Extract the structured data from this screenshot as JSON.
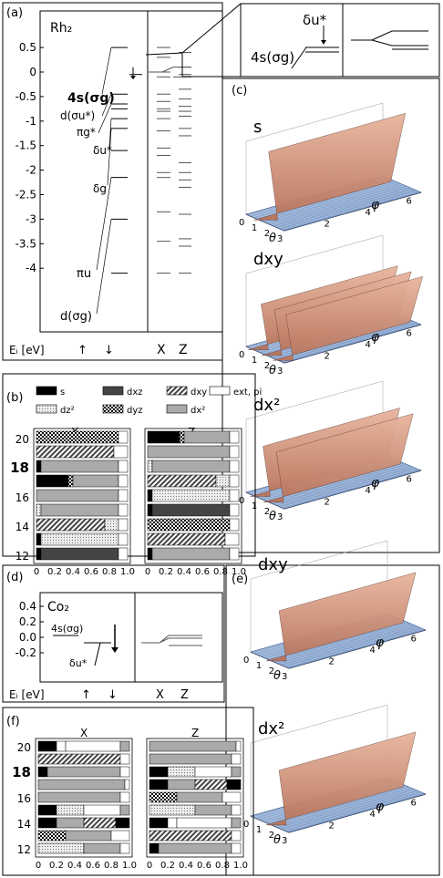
{
  "panels": {
    "a": {
      "label": "(a)",
      "molecule": "Rh₂",
      "y_ticks": [
        "0.5",
        "0",
        "-0.5",
        "-1",
        "-1.5",
        "-2",
        "-2.5",
        "-3",
        "-3.5",
        "-4"
      ],
      "y_values": [
        0.5,
        0,
        -0.5,
        -1,
        -1.5,
        -2,
        -2.5,
        -3,
        -3.5,
        -4
      ],
      "axis_label": "Eᵢ [eV]",
      "up": "↑",
      "down": "↓",
      "col_x": "X",
      "col_z": "Z",
      "levels": [
        {
          "name": "4s(σg)",
          "energy": -0.45
        },
        {
          "name": "d(σu*)",
          "energy": -0.72
        },
        {
          "name": "πg*",
          "energy": -0.97
        },
        {
          "name": "δu*",
          "energy": -1.12
        },
        {
          "name": "δg",
          "energy": -1.75
        },
        {
          "name": "πu",
          "energy": -3.5
        },
        {
          "name": "d(σg)",
          "energy": -4.1
        }
      ]
    },
    "inset": {
      "delta": "δu*",
      "sigma": "4s(σg)"
    },
    "c": {
      "label": "(c)",
      "s": "s",
      "dxy": "dxy",
      "dx2": "dx²",
      "theta": "θ",
      "phi": "φ"
    },
    "b": {
      "label": "(b)",
      "legend": [
        "s",
        "dxz",
        "dxy",
        "dz²",
        "dyz",
        "dx²",
        "ext, pi"
      ],
      "col_x": "X",
      "col_z": "Z",
      "rows": [
        "20",
        "18",
        "16",
        "14",
        "12"
      ],
      "xticks": [
        "0",
        "0.2",
        "0.4",
        "0.6",
        "0.8",
        "1.0"
      ]
    },
    "d": {
      "label": "(d)",
      "molecule": "Co₂",
      "y_ticks": [
        "0.4",
        "0.2",
        "0.0",
        "-0.2"
      ],
      "level_sigma": "4s(σg)",
      "level_delta": "δu*",
      "axis_label": "Eᵢ [eV]",
      "up": "↑",
      "down": "↓",
      "col_x": "X",
      "col_z": "Z"
    },
    "e": {
      "label": "(e)",
      "dxy": "dxy",
      "dx2": "dx²",
      "theta": "θ",
      "phi": "φ"
    },
    "f": {
      "label": "(f)",
      "col_x": "X",
      "col_z": "Z",
      "rows": [
        "20",
        "18",
        "16",
        "14",
        "12"
      ],
      "xticks": [
        "0",
        "0.2",
        "0.4",
        "0.6",
        "0.8",
        "1.0"
      ]
    }
  },
  "colors": {
    "surface": "#8fa9cf",
    "peak": "#d9a28d",
    "line": "#000000"
  }
}
